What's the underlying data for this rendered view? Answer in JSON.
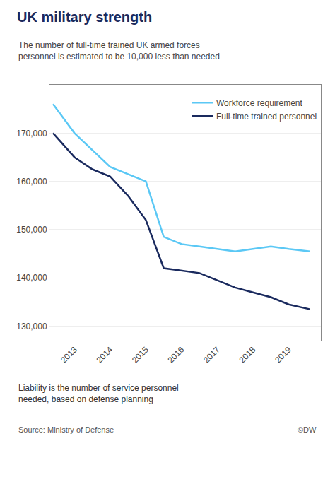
{
  "chart_data": {
    "type": "line",
    "title": "UK military strength",
    "subtitle": "The number of full-time trained UK armed forces\npersonnel is estimated to be 10,000 less than needed",
    "annotations": [
      "Liability is the number of service personnel\nneeded, based on defense planning",
      "Source: Ministry of Defense",
      "©DW"
    ],
    "series": [
      {
        "name": "Workforce requirement",
        "color": "#5bc8f5",
        "x": [
          2012.4,
          2013,
          2014,
          2015,
          2015.5,
          2016,
          2016.5,
          2017,
          2017.5,
          2018,
          2018.5,
          2019,
          2019.6
        ],
        "values": [
          176000,
          170000,
          163000,
          160000,
          148500,
          147000,
          146500,
          146000,
          145500,
          146000,
          146500,
          146000,
          145500
        ]
      },
      {
        "name": "Full-time trained personnel",
        "color": "#1a2a5e",
        "x": [
          2012.4,
          2013,
          2013.5,
          2014,
          2014.5,
          2015,
          2015.5,
          2016,
          2016.5,
          2017,
          2017.5,
          2018,
          2018.5,
          2019,
          2019.6
        ],
        "values": [
          170000,
          165000,
          162500,
          161000,
          157000,
          152000,
          142000,
          141500,
          141000,
          139500,
          138000,
          137000,
          136000,
          134500,
          133500
        ]
      }
    ],
    "xlim": [
      2012.3,
      2019.9
    ],
    "xticks": [
      2013,
      2014,
      2015,
      2016,
      2017,
      2018,
      2019
    ],
    "ylim": [
      127000,
      180000
    ],
    "yticks": [
      {
        "value": 130000,
        "label": "130,000"
      },
      {
        "value": 140000,
        "label": "140,000"
      },
      {
        "value": 150000,
        "label": "150,000"
      },
      {
        "value": 160000,
        "label": "160,000"
      },
      {
        "value": 170000,
        "label": "170,000"
      }
    ],
    "grid": true,
    "legend": "upper right"
  }
}
